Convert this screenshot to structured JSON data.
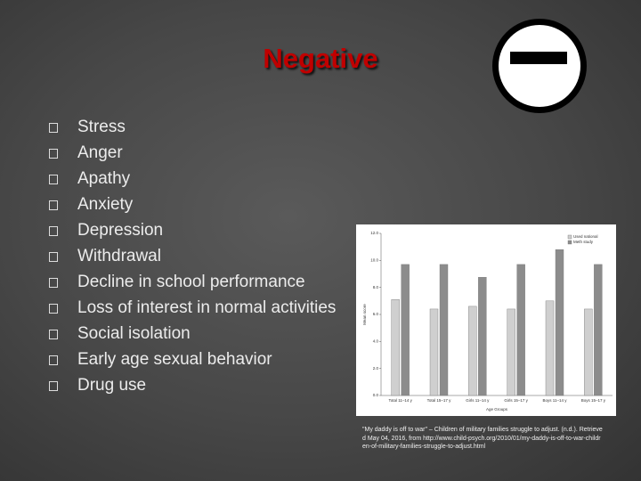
{
  "slide": {
    "title": "Negative",
    "bullets": [
      "Stress",
      "Anger",
      "Apathy",
      "Anxiety",
      "Depression",
      "Withdrawal",
      "Decline in school performance",
      "Loss of interest in normal activities",
      "Social isolation",
      "Early age sexual behavior",
      "Drug use"
    ],
    "citation": "\"My daddy is off to war\" – Children of military families struggle to adjust. (n.d.). Retrieved May 04, 2016, from http://www.child-psych.org/2010/01/my-daddy-is-off-to-war-children-of-military-families-struggle-to-adjust.html"
  },
  "chart_data": {
    "type": "bar",
    "x_label": "Age Groups",
    "y_label": "Mean score",
    "categories": [
      "Total 11–14 y",
      "Total 15–17 y",
      "Girls 11–14 y",
      "Girls 15–17 y",
      "Boys 11–14 y",
      "Boys 15–17 y"
    ],
    "series": [
      {
        "name": "Used national",
        "color": "#cfcfcf",
        "values": [
          7.1,
          6.4,
          6.6,
          6.4,
          7.0,
          6.4
        ]
      },
      {
        "name": "Meth study",
        "color": "#8c8c8c",
        "values": [
          9.7,
          9.7,
          8.75,
          9.7,
          10.8,
          9.7
        ]
      }
    ],
    "ylim": [
      0,
      12
    ],
    "yticks": [
      {
        "value": 0,
        "label": "0.0"
      },
      {
        "value": 2,
        "label": "2.0"
      },
      {
        "value": 4,
        "label": "4.0"
      },
      {
        "value": 6,
        "label": "6.0"
      },
      {
        "value": 8,
        "label": "8.0"
      },
      {
        "value": 10,
        "label": "10.0"
      },
      {
        "value": 12,
        "label": "12.0"
      }
    ],
    "legend": "top-right"
  }
}
